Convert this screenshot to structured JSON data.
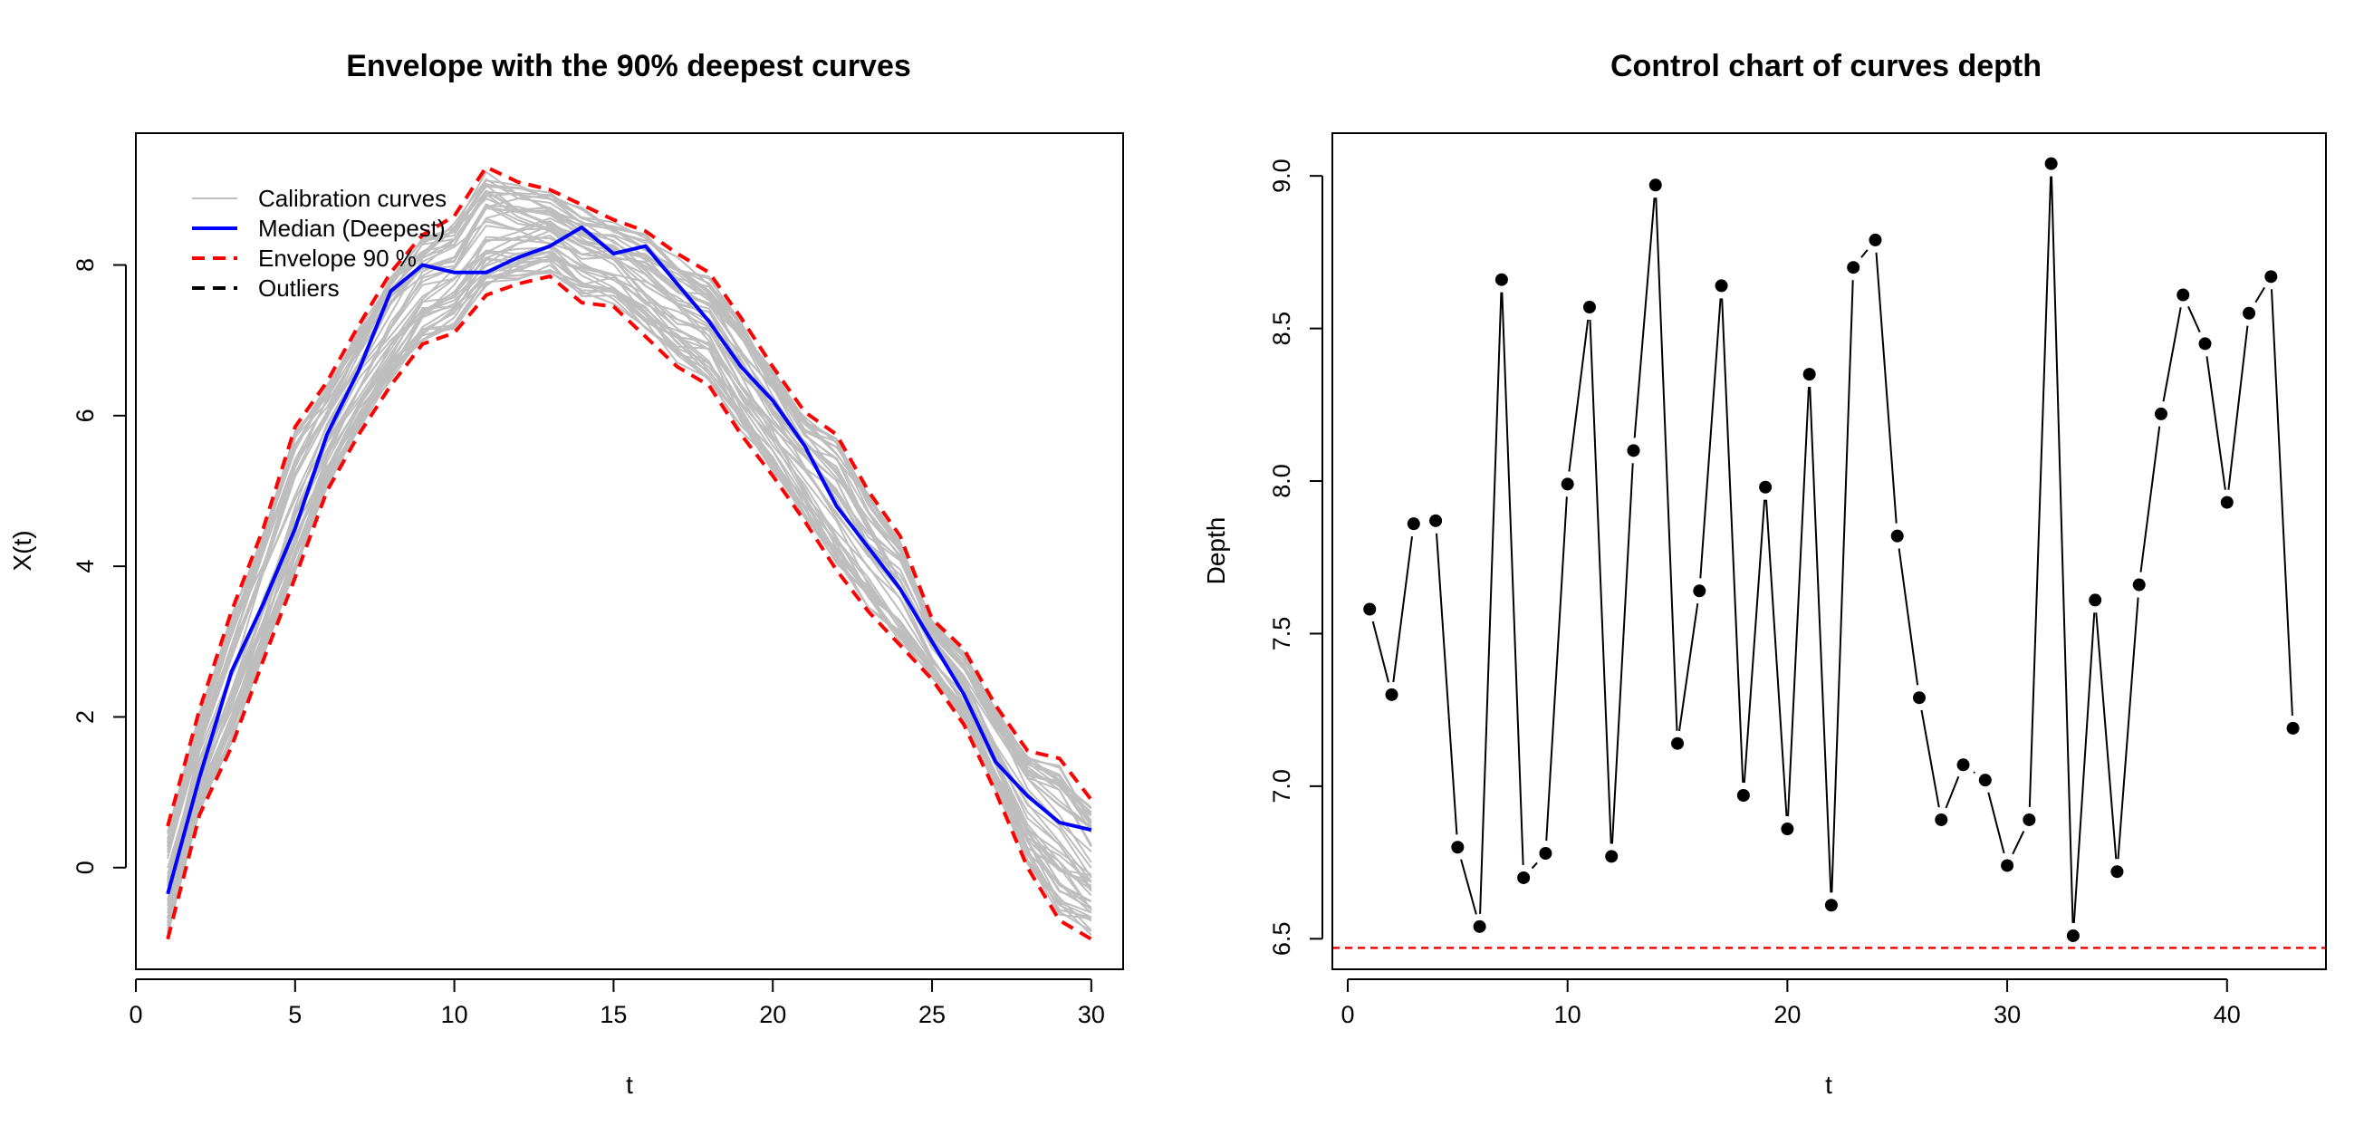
{
  "chart_data": [
    {
      "type": "line",
      "title": "Envelope with the 90% deepest curves",
      "xlabel": "t",
      "ylabel": "X(t)",
      "xlim": [
        0,
        31
      ],
      "ylim": [
        -1.35,
        9.75
      ],
      "x_ticks": [
        "0",
        "5",
        "10",
        "15",
        "20",
        "25",
        "30"
      ],
      "y_ticks": [
        "0",
        "2",
        "4",
        "6",
        "8"
      ],
      "legend_position": "top-left",
      "legend": [
        {
          "label": "Calibration curves",
          "color": "#bebebe",
          "style": "solid"
        },
        {
          "label": "Median (Deepest)",
          "color": "#0000ff",
          "style": "solid"
        },
        {
          "label": "Envelope 90 %",
          "color": "#ff0000",
          "style": "dashed"
        },
        {
          "label": "Outliers",
          "color": "#000000",
          "style": "dashed"
        }
      ],
      "x": [
        1,
        2,
        3,
        4,
        5,
        6,
        7,
        8,
        9,
        10,
        11,
        12,
        13,
        14,
        15,
        16,
        17,
        18,
        19,
        20,
        21,
        22,
        23,
        24,
        25,
        26,
        27,
        28,
        29,
        30
      ],
      "series": [
        {
          "name": "Median (Deepest)",
          "color": "#0000ff",
          "style": "solid",
          "values": [
            -0.35,
            1.2,
            2.6,
            3.5,
            4.5,
            5.75,
            6.6,
            7.65,
            8.0,
            7.9,
            7.9,
            8.1,
            8.25,
            8.5,
            8.15,
            8.25,
            7.75,
            7.25,
            6.65,
            6.2,
            5.6,
            4.8,
            4.25,
            3.7,
            3.0,
            2.3,
            1.4,
            0.95,
            0.6,
            0.5
          ]
        },
        {
          "name": "Envelope 90 %",
          "color": "#ff0000",
          "style": "dashed",
          "values": [
            0.55,
            2.1,
            3.4,
            4.5,
            5.85,
            6.45,
            7.2,
            7.9,
            8.4,
            8.65,
            9.3,
            9.1,
            9.0,
            8.8,
            8.6,
            8.45,
            8.15,
            7.9,
            7.3,
            6.65,
            6.05,
            5.75,
            5.0,
            4.4,
            3.3,
            2.9,
            2.15,
            1.55,
            1.45,
            0.9
          ]
        },
        {
          "name": "Envelope 90 % (lower)",
          "color": "#ff0000",
          "style": "dashed",
          "values": [
            -0.95,
            0.7,
            1.6,
            2.75,
            3.85,
            5.0,
            5.75,
            6.4,
            6.95,
            7.1,
            7.6,
            7.75,
            7.85,
            7.5,
            7.45,
            7.05,
            6.65,
            6.4,
            5.75,
            5.2,
            4.6,
            3.95,
            3.4,
            2.95,
            2.5,
            1.9,
            1.0,
            0.0,
            -0.7,
            -0.95
          ]
        }
      ]
    },
    {
      "type": "line",
      "title": "Control chart of curves depth",
      "xlabel": "t",
      "ylabel": "Depth",
      "xlim": [
        -0.7,
        44.5
      ],
      "ylim": [
        6.4,
        9.14
      ],
      "x_ticks": [
        "0",
        "10",
        "20",
        "30",
        "40"
      ],
      "y_ticks": [
        "6.5",
        "7.0",
        "7.5",
        "8.0",
        "8.5",
        "9.0"
      ],
      "threshold": 6.47,
      "threshold_color": "#ff0000",
      "series": [
        {
          "color": "#000000",
          "x": [
            1,
            2,
            3,
            4,
            5,
            6,
            7,
            8,
            9,
            10,
            11,
            12,
            13,
            14,
            15,
            16,
            17,
            18,
            19,
            20,
            21,
            22,
            23,
            24,
            25,
            26,
            27,
            28,
            29,
            30,
            31,
            32,
            33,
            34,
            35,
            36,
            37,
            38,
            39,
            40,
            41,
            42,
            43
          ],
          "values": [
            7.58,
            7.3,
            7.86,
            7.87,
            6.8,
            6.54,
            8.66,
            6.7,
            6.78,
            7.99,
            8.57,
            6.77,
            8.1,
            8.97,
            7.14,
            7.64,
            8.64,
            6.97,
            7.98,
            6.86,
            8.35,
            6.61,
            8.7,
            8.79,
            7.82,
            7.29,
            6.89,
            7.07,
            7.02,
            6.74,
            6.89,
            9.04,
            6.51,
            7.61,
            6.72,
            7.66,
            8.22,
            8.61,
            8.45,
            7.93,
            8.55,
            8.67,
            7.19
          ]
        }
      ]
    }
  ]
}
